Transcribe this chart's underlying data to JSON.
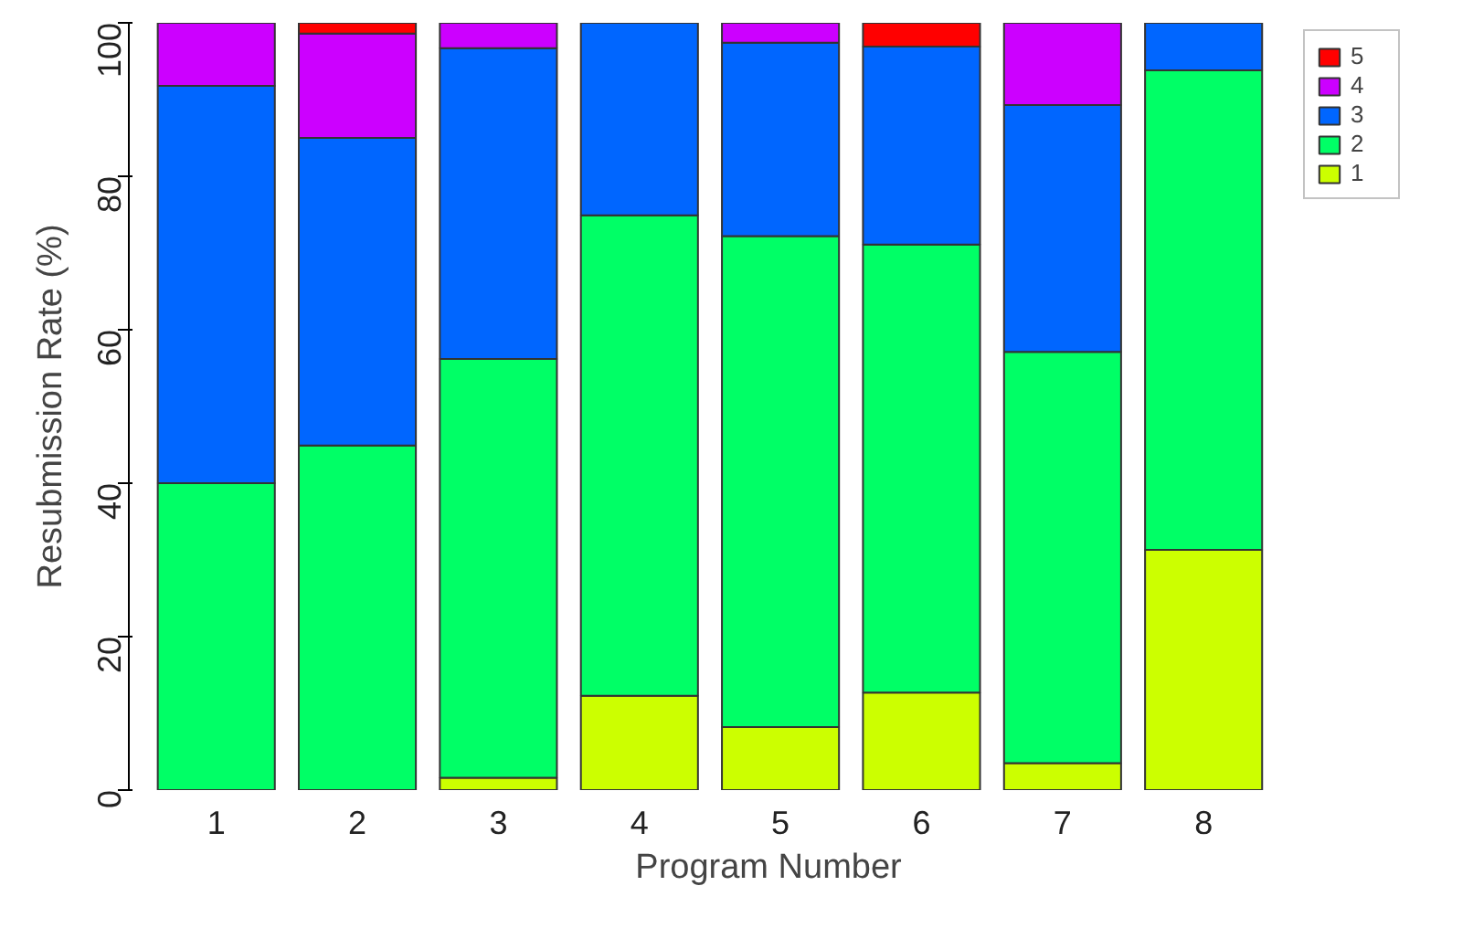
{
  "chart_data": {
    "type": "bar",
    "stacked": true,
    "xlabel": "Program Number",
    "ylabel": "Resubmission Rate (%)",
    "categories": [
      "1",
      "2",
      "3",
      "4",
      "5",
      "6",
      "7",
      "8"
    ],
    "ylim": [
      0,
      100
    ],
    "yticks": [
      0,
      20,
      40,
      60,
      80,
      100
    ],
    "grid": false,
    "legend": "right",
    "series": [
      {
        "name": "1",
        "color": "#ccff00",
        "values": [
          0,
          0,
          1.6,
          12.3,
          8.2,
          12.7,
          3.5,
          31.3
        ]
      },
      {
        "name": "2",
        "color": "#00ff66",
        "values": [
          40.0,
          44.9,
          54.6,
          62.6,
          64.0,
          58.4,
          53.6,
          62.5
        ]
      },
      {
        "name": "3",
        "color": "#0066ff",
        "values": [
          51.8,
          40.1,
          40.5,
          25.1,
          25.2,
          25.8,
          32.2,
          6.2
        ]
      },
      {
        "name": "4",
        "color": "#cc00ff",
        "values": [
          8.2,
          13.6,
          3.3,
          0,
          2.6,
          0,
          10.7,
          0
        ]
      },
      {
        "name": "5",
        "color": "#ff0000",
        "values": [
          0,
          1.4,
          0,
          0,
          0,
          3.1,
          0,
          0
        ]
      }
    ]
  }
}
